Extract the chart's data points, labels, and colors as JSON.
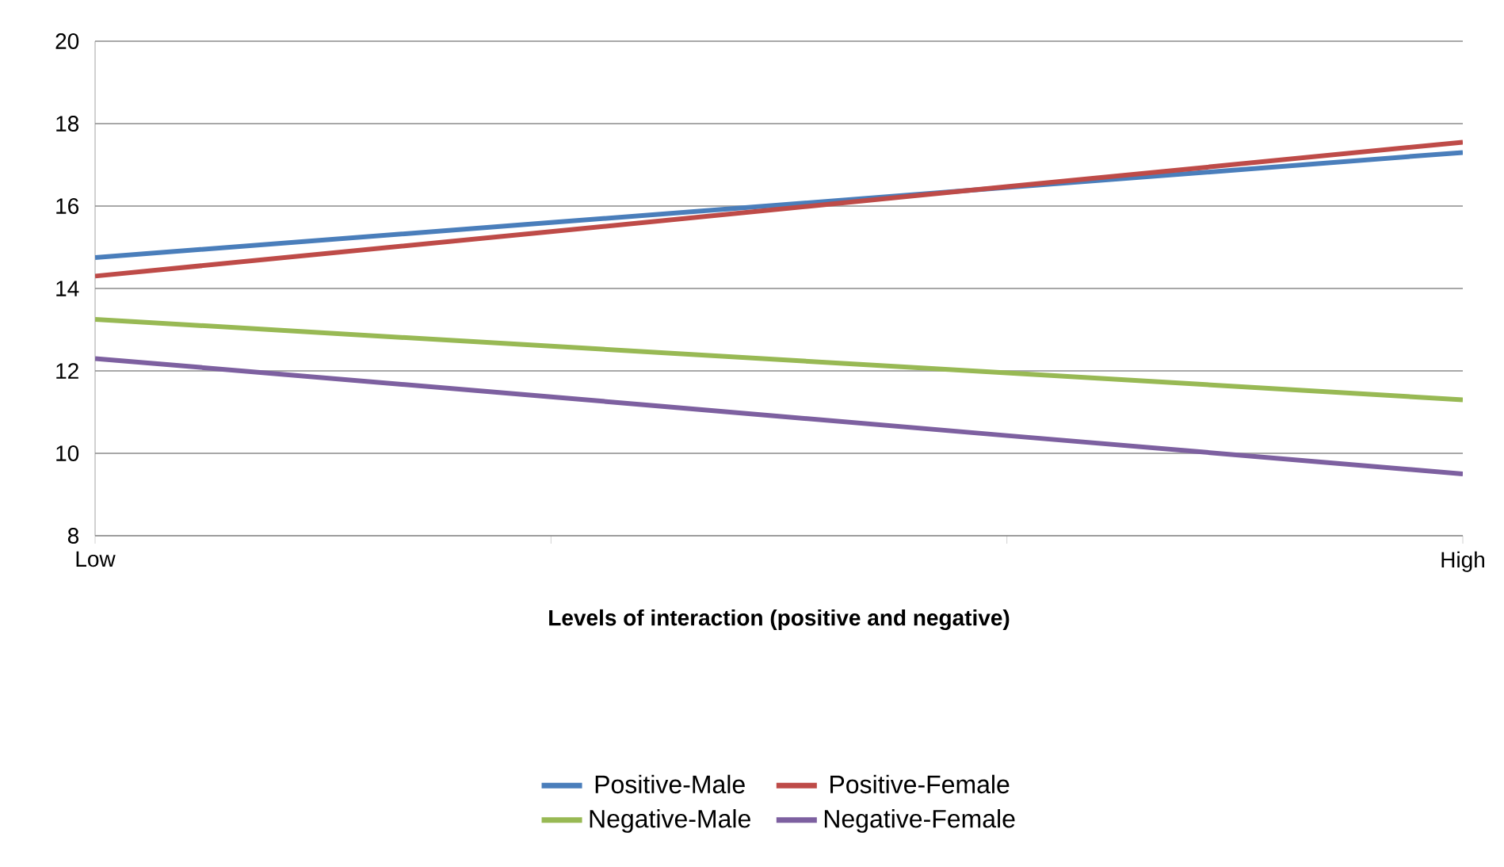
{
  "chart_data": {
    "type": "line",
    "xlabel": "Levels of interaction (positive and negative)",
    "categories": [
      "Low",
      null,
      null,
      "High"
    ],
    "series": [
      {
        "name": "Positive-Male",
        "color": "#4a7ebb",
        "values": [
          14.75,
          15.6,
          16.45,
          17.3
        ]
      },
      {
        "name": "Positive-Female",
        "color": "#be4b48",
        "values": [
          14.3,
          15.38,
          16.47,
          17.55
        ]
      },
      {
        "name": "Negative-Male",
        "color": "#98b954",
        "values": [
          13.25,
          12.6,
          11.95,
          11.3
        ]
      },
      {
        "name": "Negative-Female",
        "color": "#7d60a0",
        "values": [
          12.3,
          11.37,
          10.43,
          9.5
        ]
      }
    ],
    "ylim": [
      8,
      20
    ],
    "yticks": [
      8,
      10,
      12,
      14,
      16,
      18,
      20
    ],
    "grid": "y",
    "legend": "bottom",
    "marker": "none",
    "line_style": "solid"
  }
}
